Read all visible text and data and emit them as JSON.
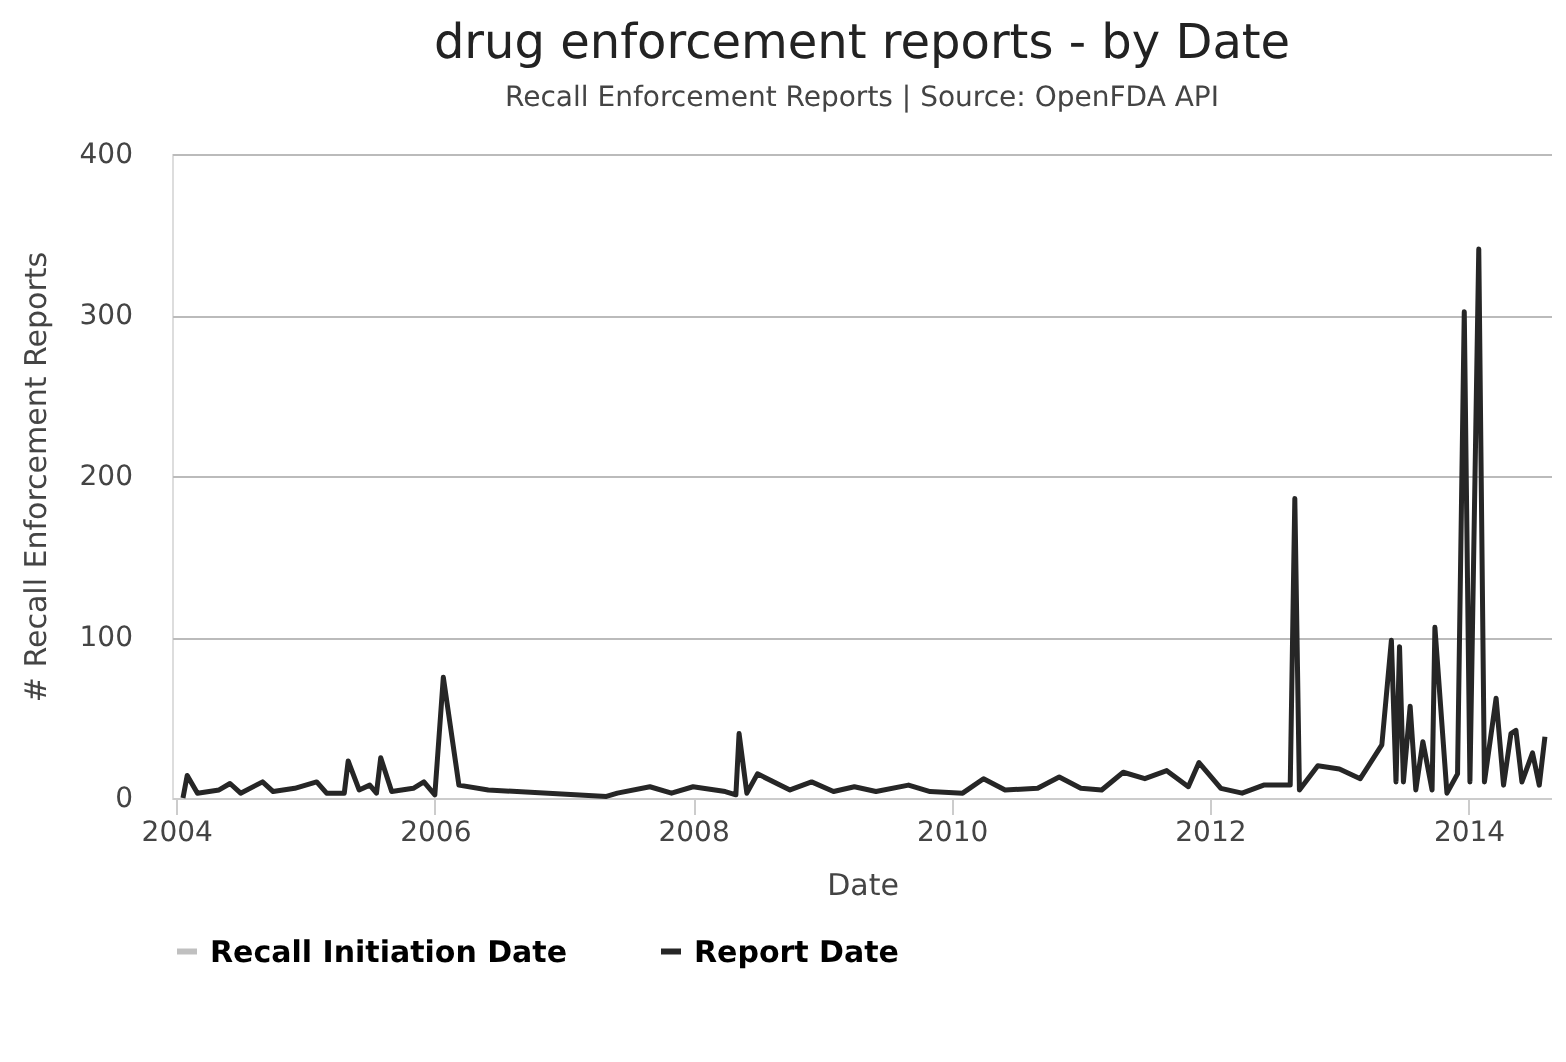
{
  "chart_data": {
    "type": "line",
    "title": "drug enforcement reports - by Date",
    "subtitle": "Recall Enforcement Reports | Source: OpenFDA API",
    "xlabel": "Date",
    "ylabel": "# Recall Enforcement Reports",
    "xlim": [
      "2003-12-20",
      "2014-08-25"
    ],
    "xticks": [
      {
        "value": "2004-01-01",
        "label": "2004"
      },
      {
        "value": "2006-01-01",
        "label": "2006"
      },
      {
        "value": "2008-01-01",
        "label": "2008"
      },
      {
        "value": "2010-01-01",
        "label": "2010"
      },
      {
        "value": "2012-01-01",
        "label": "2012"
      },
      {
        "value": "2014-01-01",
        "label": "2014"
      }
    ],
    "ylim": [
      0,
      400
    ],
    "yticks": [
      0,
      100,
      200,
      300,
      400
    ],
    "grid": "y",
    "legend": "bottom",
    "line_style": "solid",
    "series": [
      {
        "name": "Recall Initiation Date",
        "color": "#c0c0c0"
      },
      {
        "name": "Report Date",
        "color": "#262626",
        "x": [
          "2004-01-20",
          "2004-02-01",
          "2004-03-01",
          "2004-05-01",
          "2004-06-01",
          "2004-07-01",
          "2004-09-01",
          "2004-10-01",
          "2004-12-01",
          "2005-02-01",
          "2005-03-01",
          "2005-04-20",
          "2005-05-01",
          "2005-06-01",
          "2005-07-01",
          "2005-07-20",
          "2005-08-01",
          "2005-09-01",
          "2005-11-01",
          "2005-12-01",
          "2006-01-01",
          "2006-01-25",
          "2006-03-10",
          "2006-06-01",
          "2007-05-01",
          "2007-06-01",
          "2007-09-01",
          "2007-11-01",
          "2008-01-01",
          "2008-04-01",
          "2008-05-01",
          "2008-05-10",
          "2008-06-01",
          "2008-07-01",
          "2008-10-01",
          "2008-12-01",
          "2009-02-01",
          "2009-04-01",
          "2009-06-01",
          "2009-09-01",
          "2009-11-01",
          "2010-02-01",
          "2010-04-01",
          "2010-06-01",
          "2010-09-01",
          "2010-11-01",
          "2011-01-01",
          "2011-03-01",
          "2011-05-01",
          "2011-07-01",
          "2011-09-01",
          "2011-11-01",
          "2011-12-01",
          "2012-02-01",
          "2012-04-01",
          "2012-06-01",
          "2012-08-15",
          "2012-08-28",
          "2012-09-10",
          "2012-11-01",
          "2013-01-01",
          "2013-03-01",
          "2013-05-01",
          "2013-05-28",
          "2013-06-10",
          "2013-06-20",
          "2013-07-01",
          "2013-07-20",
          "2013-08-05",
          "2013-08-25",
          "2013-09-20",
          "2013-09-28",
          "2013-11-01",
          "2013-12-01",
          "2013-12-20",
          "2014-01-05",
          "2014-01-30",
          "2014-02-15",
          "2014-03-20",
          "2014-04-10",
          "2014-05-01",
          "2014-05-15",
          "2014-06-01",
          "2014-07-01",
          "2014-07-20",
          "2014-08-05"
        ],
        "values": [
          0,
          14,
          3,
          5,
          9,
          3,
          10,
          4,
          6,
          10,
          3,
          3,
          23,
          5,
          8,
          3,
          25,
          4,
          6,
          10,
          2,
          75,
          8,
          5,
          1,
          3,
          7,
          3,
          7,
          4,
          2,
          40,
          3,
          15,
          5,
          10,
          4,
          7,
          4,
          8,
          4,
          3,
          12,
          5,
          6,
          13,
          6,
          5,
          16,
          12,
          17,
          7,
          22,
          6,
          3,
          8,
          8,
          186,
          5,
          20,
          18,
          12,
          33,
          98,
          10,
          94,
          10,
          57,
          5,
          35,
          5,
          106,
          3,
          15,
          302,
          10,
          341,
          10,
          62,
          8,
          40,
          42,
          10,
          28,
          8,
          38
        ]
      }
    ]
  }
}
